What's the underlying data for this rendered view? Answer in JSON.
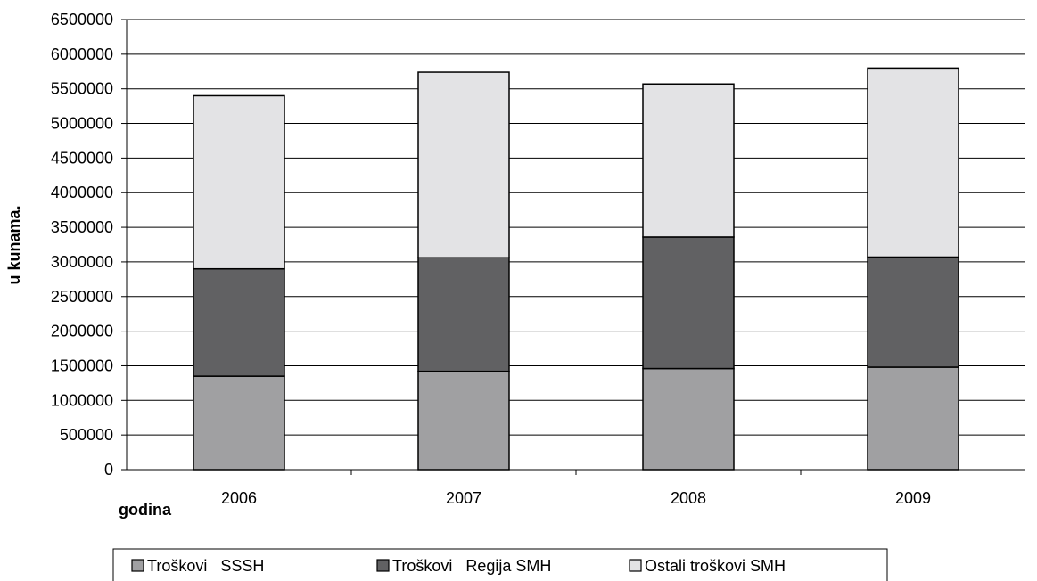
{
  "chart_data": {
    "type": "bar",
    "stacked": true,
    "categories": [
      "2006",
      "2007",
      "2008",
      "2009"
    ],
    "series": [
      {
        "name": "Troškovi   SSSH",
        "color": "#a0a0a2",
        "values": [
          1350000,
          1420000,
          1460000,
          1480000
        ]
      },
      {
        "name": "Troškovi   Regija SMH",
        "color": "#616163",
        "values": [
          1550000,
          1640000,
          1900000,
          1590000
        ]
      },
      {
        "name": "Ostali troškovi SMH",
        "color": "#e3e3e5",
        "values": [
          2500000,
          2680000,
          2210000,
          2730000
        ]
      }
    ],
    "title": "",
    "xlabel": "godina",
    "ylabel": "u  kunama.",
    "ylim": [
      0,
      6500000
    ],
    "ytick_step": 500000,
    "grid": true,
    "legend_position": "bottom"
  }
}
